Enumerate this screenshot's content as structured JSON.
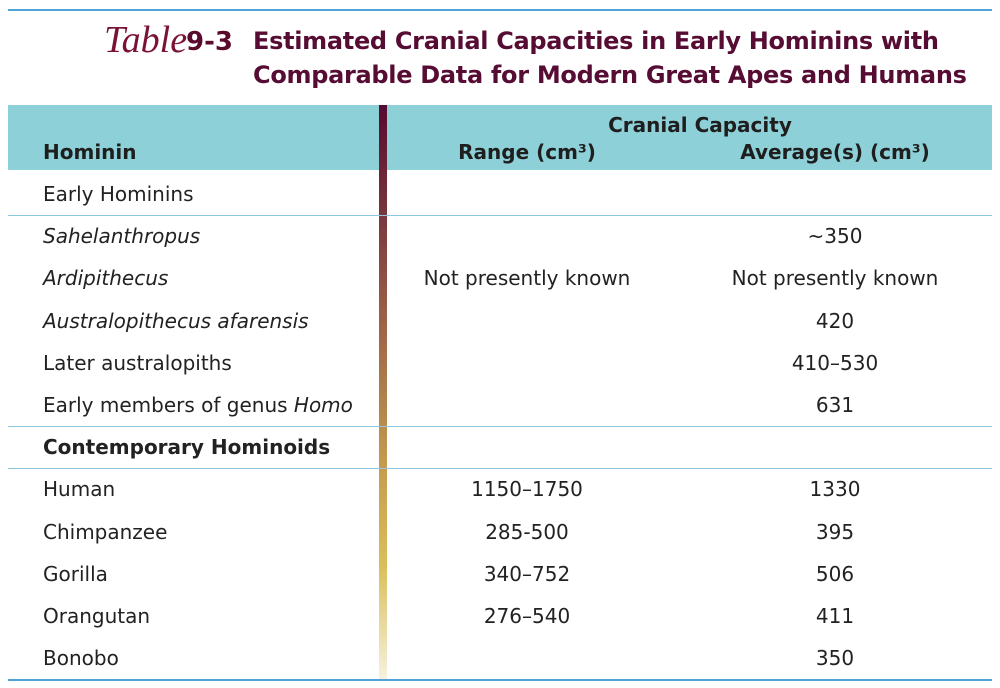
{
  "header": {
    "label": "Table",
    "number": "9-3",
    "title_lines": [
      "Estimated Cranial Capacities in Early Hominins with",
      "Comparable Data for Modern Great Apes and Humans"
    ]
  },
  "table": {
    "columns": {
      "name": "Hominin",
      "group": "Cranial Capacity",
      "range": "Range (cm³)",
      "average": "Average(s) (cm³)"
    },
    "rows": [
      {
        "name": [
          {
            "text": "Early Hominins"
          }
        ],
        "range": null,
        "average": null,
        "rule_below": true
      },
      {
        "name": [
          {
            "text": "Sahelanthropus",
            "italic": true
          }
        ],
        "range": null,
        "average": "~350"
      },
      {
        "name": [
          {
            "text": "Ardipithecus",
            "italic": true
          }
        ],
        "range": "Not presently known",
        "average": "Not presently known"
      },
      {
        "name": [
          {
            "text": "Australopithecus afarensis",
            "italic": true
          }
        ],
        "range": null,
        "average": "420"
      },
      {
        "name": [
          {
            "text": "Later australopiths"
          }
        ],
        "range": null,
        "average": "410–530"
      },
      {
        "name": [
          {
            "text": "Early members of genus "
          },
          {
            "text": "Homo",
            "italic": true
          }
        ],
        "range": null,
        "average": "631",
        "rule_below": true
      },
      {
        "name": [
          {
            "text": "Contemporary Hominoids",
            "bold": true
          }
        ],
        "range": null,
        "average": null,
        "rule_below": true
      },
      {
        "name": [
          {
            "text": "Human"
          }
        ],
        "range": "1150–1750",
        "average": "1330"
      },
      {
        "name": [
          {
            "text": "Chimpanzee"
          }
        ],
        "range": "285-500",
        "average": "395"
      },
      {
        "name": [
          {
            "text": "Gorilla"
          }
        ],
        "range": "340–752",
        "average": "506"
      },
      {
        "name": [
          {
            "text": "Orangutan"
          }
        ],
        "range": "276–540",
        "average": "411"
      },
      {
        "name": [
          {
            "text": "Bonobo"
          }
        ],
        "range": null,
        "average": "350"
      }
    ]
  }
}
